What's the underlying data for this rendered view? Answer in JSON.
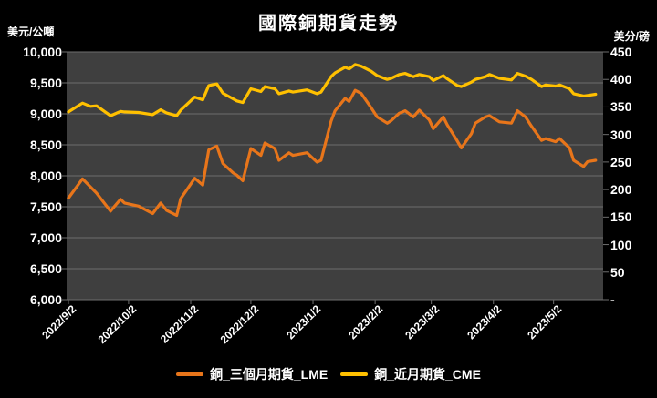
{
  "header": {
    "title": "國際銅期貨走勢",
    "left_axis_unit": "美元/公噸",
    "right_axis_unit": "美分/磅"
  },
  "legend": {
    "items": [
      {
        "label": "銅_三個月期貨_LME",
        "color": "#E8751A"
      },
      {
        "label": "銅_近月期貨_CME",
        "color": "#FFC000"
      }
    ]
  },
  "colors": {
    "background": "#000000",
    "plot_background": "#3F3F3F",
    "gridline": "#6E6E6E",
    "text": "#FFFFFF",
    "lme_orange": "#E8751A",
    "cme_yellow": "#FFC000"
  },
  "chart_data": {
    "type": "line",
    "title": "國際銅期貨走勢",
    "grid": "horizontal",
    "legend_position": "bottom",
    "left_axis": {
      "unit": "美元/公噸",
      "min": 6000,
      "max": 10000,
      "step": 500,
      "tick_labels": [
        "10,000",
        "9,500",
        "9,000",
        "8,500",
        "8,000",
        "7,500",
        "7,000",
        "6,500",
        "6,000"
      ]
    },
    "right_axis": {
      "unit": "美分/磅",
      "min": 0,
      "max": 450,
      "step": 50,
      "tick_labels": [
        "450",
        "400",
        "350",
        "300",
        "250",
        "200",
        "150",
        "100",
        "50",
        "-"
      ]
    },
    "x_axis": {
      "start": "2022/9/2",
      "end": "2023/5/24",
      "tick_labels": [
        "2022/9/2",
        "2022/10/2",
        "2022/11/2",
        "2022/12/2",
        "2023/1/2",
        "2023/2/2",
        "2023/3/2",
        "2023/4/2",
        "2023/5/2"
      ]
    },
    "x": [
      "2022/9/2",
      "2022/9/9",
      "2022/9/13",
      "2022/9/16",
      "2022/9/23",
      "2022/9/28",
      "2022/9/30",
      "2022/10/7",
      "2022/10/14",
      "2022/10/18",
      "2022/10/21",
      "2022/10/26",
      "2022/10/28",
      "2022/11/4",
      "2022/11/8",
      "2022/11/11",
      "2022/11/15",
      "2022/11/18",
      "2022/11/23",
      "2022/11/25",
      "2022/11/28",
      "2022/12/2",
      "2022/12/7",
      "2022/12/9",
      "2022/12/14",
      "2022/12/16",
      "2022/12/21",
      "2022/12/23",
      "2022/12/30",
      "2023/1/4",
      "2023/1/6",
      "2023/1/11",
      "2023/1/13",
      "2023/1/18",
      "2023/1/20",
      "2023/1/23",
      "2023/1/26",
      "2023/1/31",
      "2023/2/3",
      "2023/2/8",
      "2023/2/10",
      "2023/2/14",
      "2023/2/17",
      "2023/2/21",
      "2023/2/24",
      "2023/3/1",
      "2023/3/3",
      "2023/3/8",
      "2023/3/10",
      "2023/3/15",
      "2023/3/17",
      "2023/3/22",
      "2023/3/24",
      "2023/3/29",
      "2023/3/31",
      "2023/4/5",
      "2023/4/11",
      "2023/4/14",
      "2023/4/18",
      "2023/4/21",
      "2023/4/26",
      "2023/4/28",
      "2023/5/3",
      "2023/5/5",
      "2023/5/10",
      "2023/5/12",
      "2023/5/17",
      "2023/5/19",
      "2023/5/23"
    ],
    "series": [
      {
        "name": "銅_三個月期貨_LME",
        "axis": "left",
        "color": "#E8751A",
        "values": [
          7640,
          7950,
          7820,
          7720,
          7430,
          7620,
          7560,
          7510,
          7390,
          7560,
          7440,
          7360,
          7630,
          7960,
          7850,
          8420,
          8480,
          8200,
          8050,
          8010,
          7920,
          8440,
          8330,
          8530,
          8440,
          8250,
          8370,
          8330,
          8372,
          8220,
          8250,
          8880,
          9050,
          9250,
          9200,
          9380,
          9330,
          9100,
          8950,
          8850,
          8890,
          9010,
          9050,
          8950,
          9060,
          8900,
          8760,
          8950,
          8820,
          8560,
          8450,
          8680,
          8850,
          8950,
          8970,
          8870,
          8850,
          9050,
          8950,
          8800,
          8570,
          8600,
          8550,
          8600,
          8450,
          8250,
          8150,
          8230,
          8250
        ]
      },
      {
        "name": "銅_近月期貨_CME",
        "axis": "right",
        "color": "#FFC000",
        "values": [
          341,
          357,
          351,
          352,
          334,
          342,
          341,
          340,
          336,
          345,
          339,
          334,
          344,
          368,
          363,
          389,
          392,
          375,
          365,
          361,
          358,
          383,
          378,
          387,
          383,
          374,
          379,
          377,
          381,
          374,
          377,
          405,
          412,
          422,
          419,
          427,
          424,
          415,
          407,
          400,
          402,
          409,
          411,
          405,
          409,
          405,
          398,
          407,
          401,
          389,
          387,
          395,
          400,
          405,
          409,
          402,
          399,
          411,
          406,
          400,
          387,
          390,
          388,
          390,
          383,
          374,
          370,
          371,
          373
        ]
      }
    ]
  }
}
